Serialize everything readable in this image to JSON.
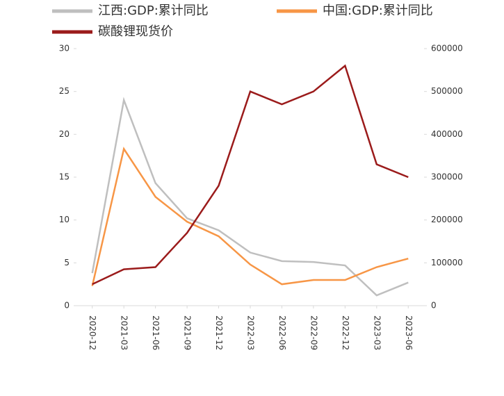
{
  "chart_data": {
    "type": "line",
    "categories": [
      "2020-12",
      "2021-03",
      "2021-06",
      "2021-09",
      "2021-12",
      "2022-03",
      "2022-06",
      "2022-09",
      "2022-12",
      "2023-03",
      "2023-06"
    ],
    "series": [
      {
        "name": "江西:GDP:累计同比",
        "color": "#bfbfbf",
        "values": [
          3.8,
          24.0,
          14.3,
          10.2,
          8.8,
          6.2,
          5.2,
          5.1,
          4.7,
          1.2,
          2.7
        ]
      },
      {
        "name": "中国:GDP:累计同比",
        "color": "#f79646",
        "values": [
          2.3,
          18.3,
          12.7,
          9.8,
          8.1,
          4.8,
          2.5,
          3.0,
          3.0,
          4.5,
          5.5
        ]
      },
      {
        "name": "碳酸锂现货价",
        "color": "#9b1b1b",
        "axis": "y2",
        "values": [
          50000,
          85000,
          90000,
          170000,
          280000,
          500000,
          470000,
          500000,
          560000,
          330000,
          300000
        ]
      }
    ],
    "ylim": [
      0,
      30
    ],
    "yticks": [
      0,
      5,
      10,
      15,
      20,
      25,
      30
    ],
    "y2lim": [
      0,
      600000
    ],
    "y2ticks": [
      0,
      100000,
      200000,
      300000,
      400000,
      500000,
      600000
    ],
    "grid": false
  }
}
